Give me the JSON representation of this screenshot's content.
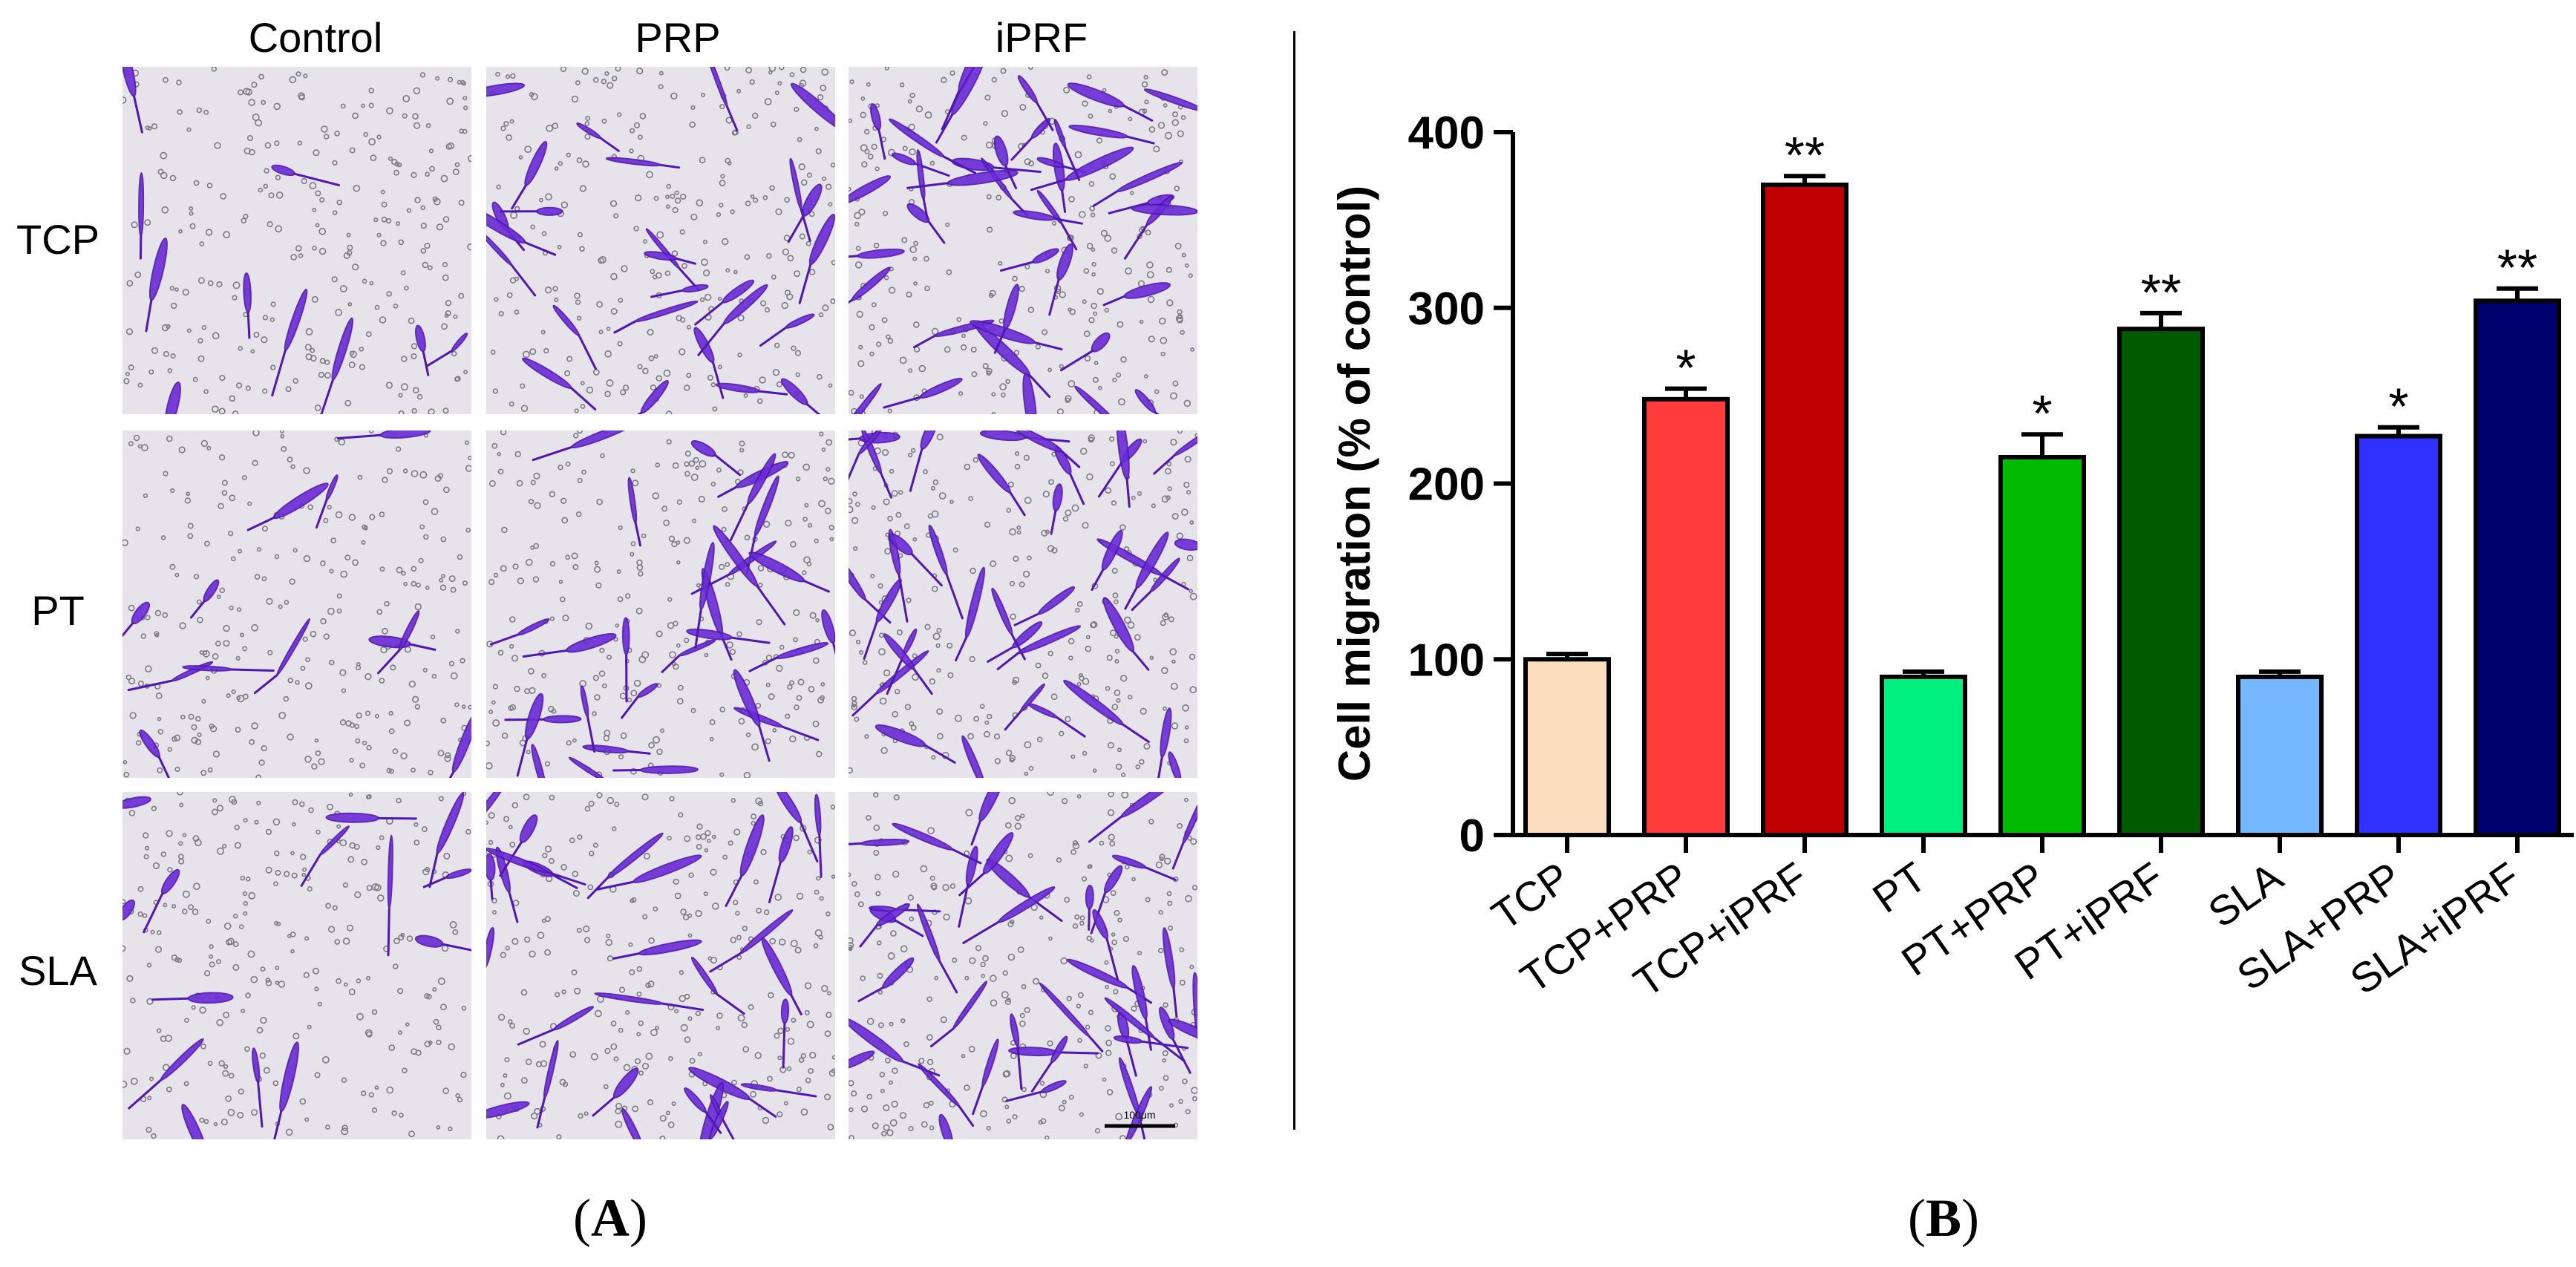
{
  "panel_a": {
    "columns": [
      "Control",
      "PRP",
      "iPRF"
    ],
    "rows": [
      "TCP",
      "PT",
      "SLA"
    ],
    "scale_bar": "100μm",
    "label_open": "(",
    "label_letter": "A",
    "label_close": ")"
  },
  "panel_b": {
    "label_open": "(",
    "label_letter": "B",
    "label_close": ")"
  },
  "chart_data": {
    "type": "bar",
    "categories": [
      "TCP",
      "TCP+PRP",
      "TCP+iPRF",
      "PT",
      "PT+PRP",
      "PT+iPRF",
      "SLA",
      "SLA+PRP",
      "SLA+iPRF"
    ],
    "values": [
      100,
      248,
      370,
      90,
      215,
      288,
      90,
      227,
      304
    ],
    "errors": [
      3,
      6,
      5,
      3,
      13,
      9,
      3,
      5,
      7
    ],
    "significance": [
      "",
      "*",
      "**",
      "",
      "*",
      "**",
      "",
      "*",
      "**"
    ],
    "colors": [
      "#FCDDBE",
      "#FF3B3B",
      "#C00000",
      "#00F080",
      "#00BB00",
      "#005A00",
      "#74B8FF",
      "#3030FF",
      "#00006E"
    ],
    "ylabel": "Cell migration (% of control)",
    "ylim": [
      0,
      400
    ],
    "yticks": [
      0,
      100,
      200,
      300,
      400
    ],
    "grid": false
  }
}
